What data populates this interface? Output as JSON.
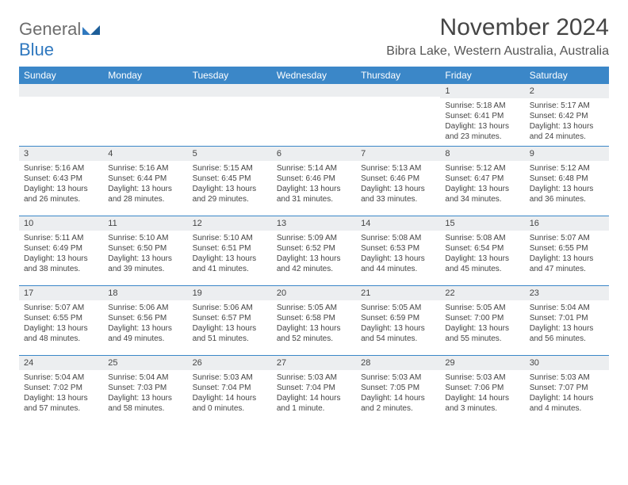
{
  "logo": {
    "part1": "General",
    "part2": "Blue"
  },
  "title": "November 2024",
  "location": "Bibra Lake, Western Australia, Australia",
  "colors": {
    "header_bg": "#3b87c8",
    "header_text": "#ffffff",
    "daynum_bg": "#eceef0",
    "border": "#3b87c8",
    "body_text": "#444444",
    "logo_gray": "#6d6d6d",
    "logo_blue": "#2f78bf"
  },
  "day_headers": [
    "Sunday",
    "Monday",
    "Tuesday",
    "Wednesday",
    "Thursday",
    "Friday",
    "Saturday"
  ],
  "weeks": [
    [
      {
        "n": "",
        "sr": "",
        "ss": "",
        "dl": ""
      },
      {
        "n": "",
        "sr": "",
        "ss": "",
        "dl": ""
      },
      {
        "n": "",
        "sr": "",
        "ss": "",
        "dl": ""
      },
      {
        "n": "",
        "sr": "",
        "ss": "",
        "dl": ""
      },
      {
        "n": "",
        "sr": "",
        "ss": "",
        "dl": ""
      },
      {
        "n": "1",
        "sr": "Sunrise: 5:18 AM",
        "ss": "Sunset: 6:41 PM",
        "dl": "Daylight: 13 hours and 23 minutes."
      },
      {
        "n": "2",
        "sr": "Sunrise: 5:17 AM",
        "ss": "Sunset: 6:42 PM",
        "dl": "Daylight: 13 hours and 24 minutes."
      }
    ],
    [
      {
        "n": "3",
        "sr": "Sunrise: 5:16 AM",
        "ss": "Sunset: 6:43 PM",
        "dl": "Daylight: 13 hours and 26 minutes."
      },
      {
        "n": "4",
        "sr": "Sunrise: 5:16 AM",
        "ss": "Sunset: 6:44 PM",
        "dl": "Daylight: 13 hours and 28 minutes."
      },
      {
        "n": "5",
        "sr": "Sunrise: 5:15 AM",
        "ss": "Sunset: 6:45 PM",
        "dl": "Daylight: 13 hours and 29 minutes."
      },
      {
        "n": "6",
        "sr": "Sunrise: 5:14 AM",
        "ss": "Sunset: 6:46 PM",
        "dl": "Daylight: 13 hours and 31 minutes."
      },
      {
        "n": "7",
        "sr": "Sunrise: 5:13 AM",
        "ss": "Sunset: 6:46 PM",
        "dl": "Daylight: 13 hours and 33 minutes."
      },
      {
        "n": "8",
        "sr": "Sunrise: 5:12 AM",
        "ss": "Sunset: 6:47 PM",
        "dl": "Daylight: 13 hours and 34 minutes."
      },
      {
        "n": "9",
        "sr": "Sunrise: 5:12 AM",
        "ss": "Sunset: 6:48 PM",
        "dl": "Daylight: 13 hours and 36 minutes."
      }
    ],
    [
      {
        "n": "10",
        "sr": "Sunrise: 5:11 AM",
        "ss": "Sunset: 6:49 PM",
        "dl": "Daylight: 13 hours and 38 minutes."
      },
      {
        "n": "11",
        "sr": "Sunrise: 5:10 AM",
        "ss": "Sunset: 6:50 PM",
        "dl": "Daylight: 13 hours and 39 minutes."
      },
      {
        "n": "12",
        "sr": "Sunrise: 5:10 AM",
        "ss": "Sunset: 6:51 PM",
        "dl": "Daylight: 13 hours and 41 minutes."
      },
      {
        "n": "13",
        "sr": "Sunrise: 5:09 AM",
        "ss": "Sunset: 6:52 PM",
        "dl": "Daylight: 13 hours and 42 minutes."
      },
      {
        "n": "14",
        "sr": "Sunrise: 5:08 AM",
        "ss": "Sunset: 6:53 PM",
        "dl": "Daylight: 13 hours and 44 minutes."
      },
      {
        "n": "15",
        "sr": "Sunrise: 5:08 AM",
        "ss": "Sunset: 6:54 PM",
        "dl": "Daylight: 13 hours and 45 minutes."
      },
      {
        "n": "16",
        "sr": "Sunrise: 5:07 AM",
        "ss": "Sunset: 6:55 PM",
        "dl": "Daylight: 13 hours and 47 minutes."
      }
    ],
    [
      {
        "n": "17",
        "sr": "Sunrise: 5:07 AM",
        "ss": "Sunset: 6:55 PM",
        "dl": "Daylight: 13 hours and 48 minutes."
      },
      {
        "n": "18",
        "sr": "Sunrise: 5:06 AM",
        "ss": "Sunset: 6:56 PM",
        "dl": "Daylight: 13 hours and 49 minutes."
      },
      {
        "n": "19",
        "sr": "Sunrise: 5:06 AM",
        "ss": "Sunset: 6:57 PM",
        "dl": "Daylight: 13 hours and 51 minutes."
      },
      {
        "n": "20",
        "sr": "Sunrise: 5:05 AM",
        "ss": "Sunset: 6:58 PM",
        "dl": "Daylight: 13 hours and 52 minutes."
      },
      {
        "n": "21",
        "sr": "Sunrise: 5:05 AM",
        "ss": "Sunset: 6:59 PM",
        "dl": "Daylight: 13 hours and 54 minutes."
      },
      {
        "n": "22",
        "sr": "Sunrise: 5:05 AM",
        "ss": "Sunset: 7:00 PM",
        "dl": "Daylight: 13 hours and 55 minutes."
      },
      {
        "n": "23",
        "sr": "Sunrise: 5:04 AM",
        "ss": "Sunset: 7:01 PM",
        "dl": "Daylight: 13 hours and 56 minutes."
      }
    ],
    [
      {
        "n": "24",
        "sr": "Sunrise: 5:04 AM",
        "ss": "Sunset: 7:02 PM",
        "dl": "Daylight: 13 hours and 57 minutes."
      },
      {
        "n": "25",
        "sr": "Sunrise: 5:04 AM",
        "ss": "Sunset: 7:03 PM",
        "dl": "Daylight: 13 hours and 58 minutes."
      },
      {
        "n": "26",
        "sr": "Sunrise: 5:03 AM",
        "ss": "Sunset: 7:04 PM",
        "dl": "Daylight: 14 hours and 0 minutes."
      },
      {
        "n": "27",
        "sr": "Sunrise: 5:03 AM",
        "ss": "Sunset: 7:04 PM",
        "dl": "Daylight: 14 hours and 1 minute."
      },
      {
        "n": "28",
        "sr": "Sunrise: 5:03 AM",
        "ss": "Sunset: 7:05 PM",
        "dl": "Daylight: 14 hours and 2 minutes."
      },
      {
        "n": "29",
        "sr": "Sunrise: 5:03 AM",
        "ss": "Sunset: 7:06 PM",
        "dl": "Daylight: 14 hours and 3 minutes."
      },
      {
        "n": "30",
        "sr": "Sunrise: 5:03 AM",
        "ss": "Sunset: 7:07 PM",
        "dl": "Daylight: 14 hours and 4 minutes."
      }
    ]
  ]
}
